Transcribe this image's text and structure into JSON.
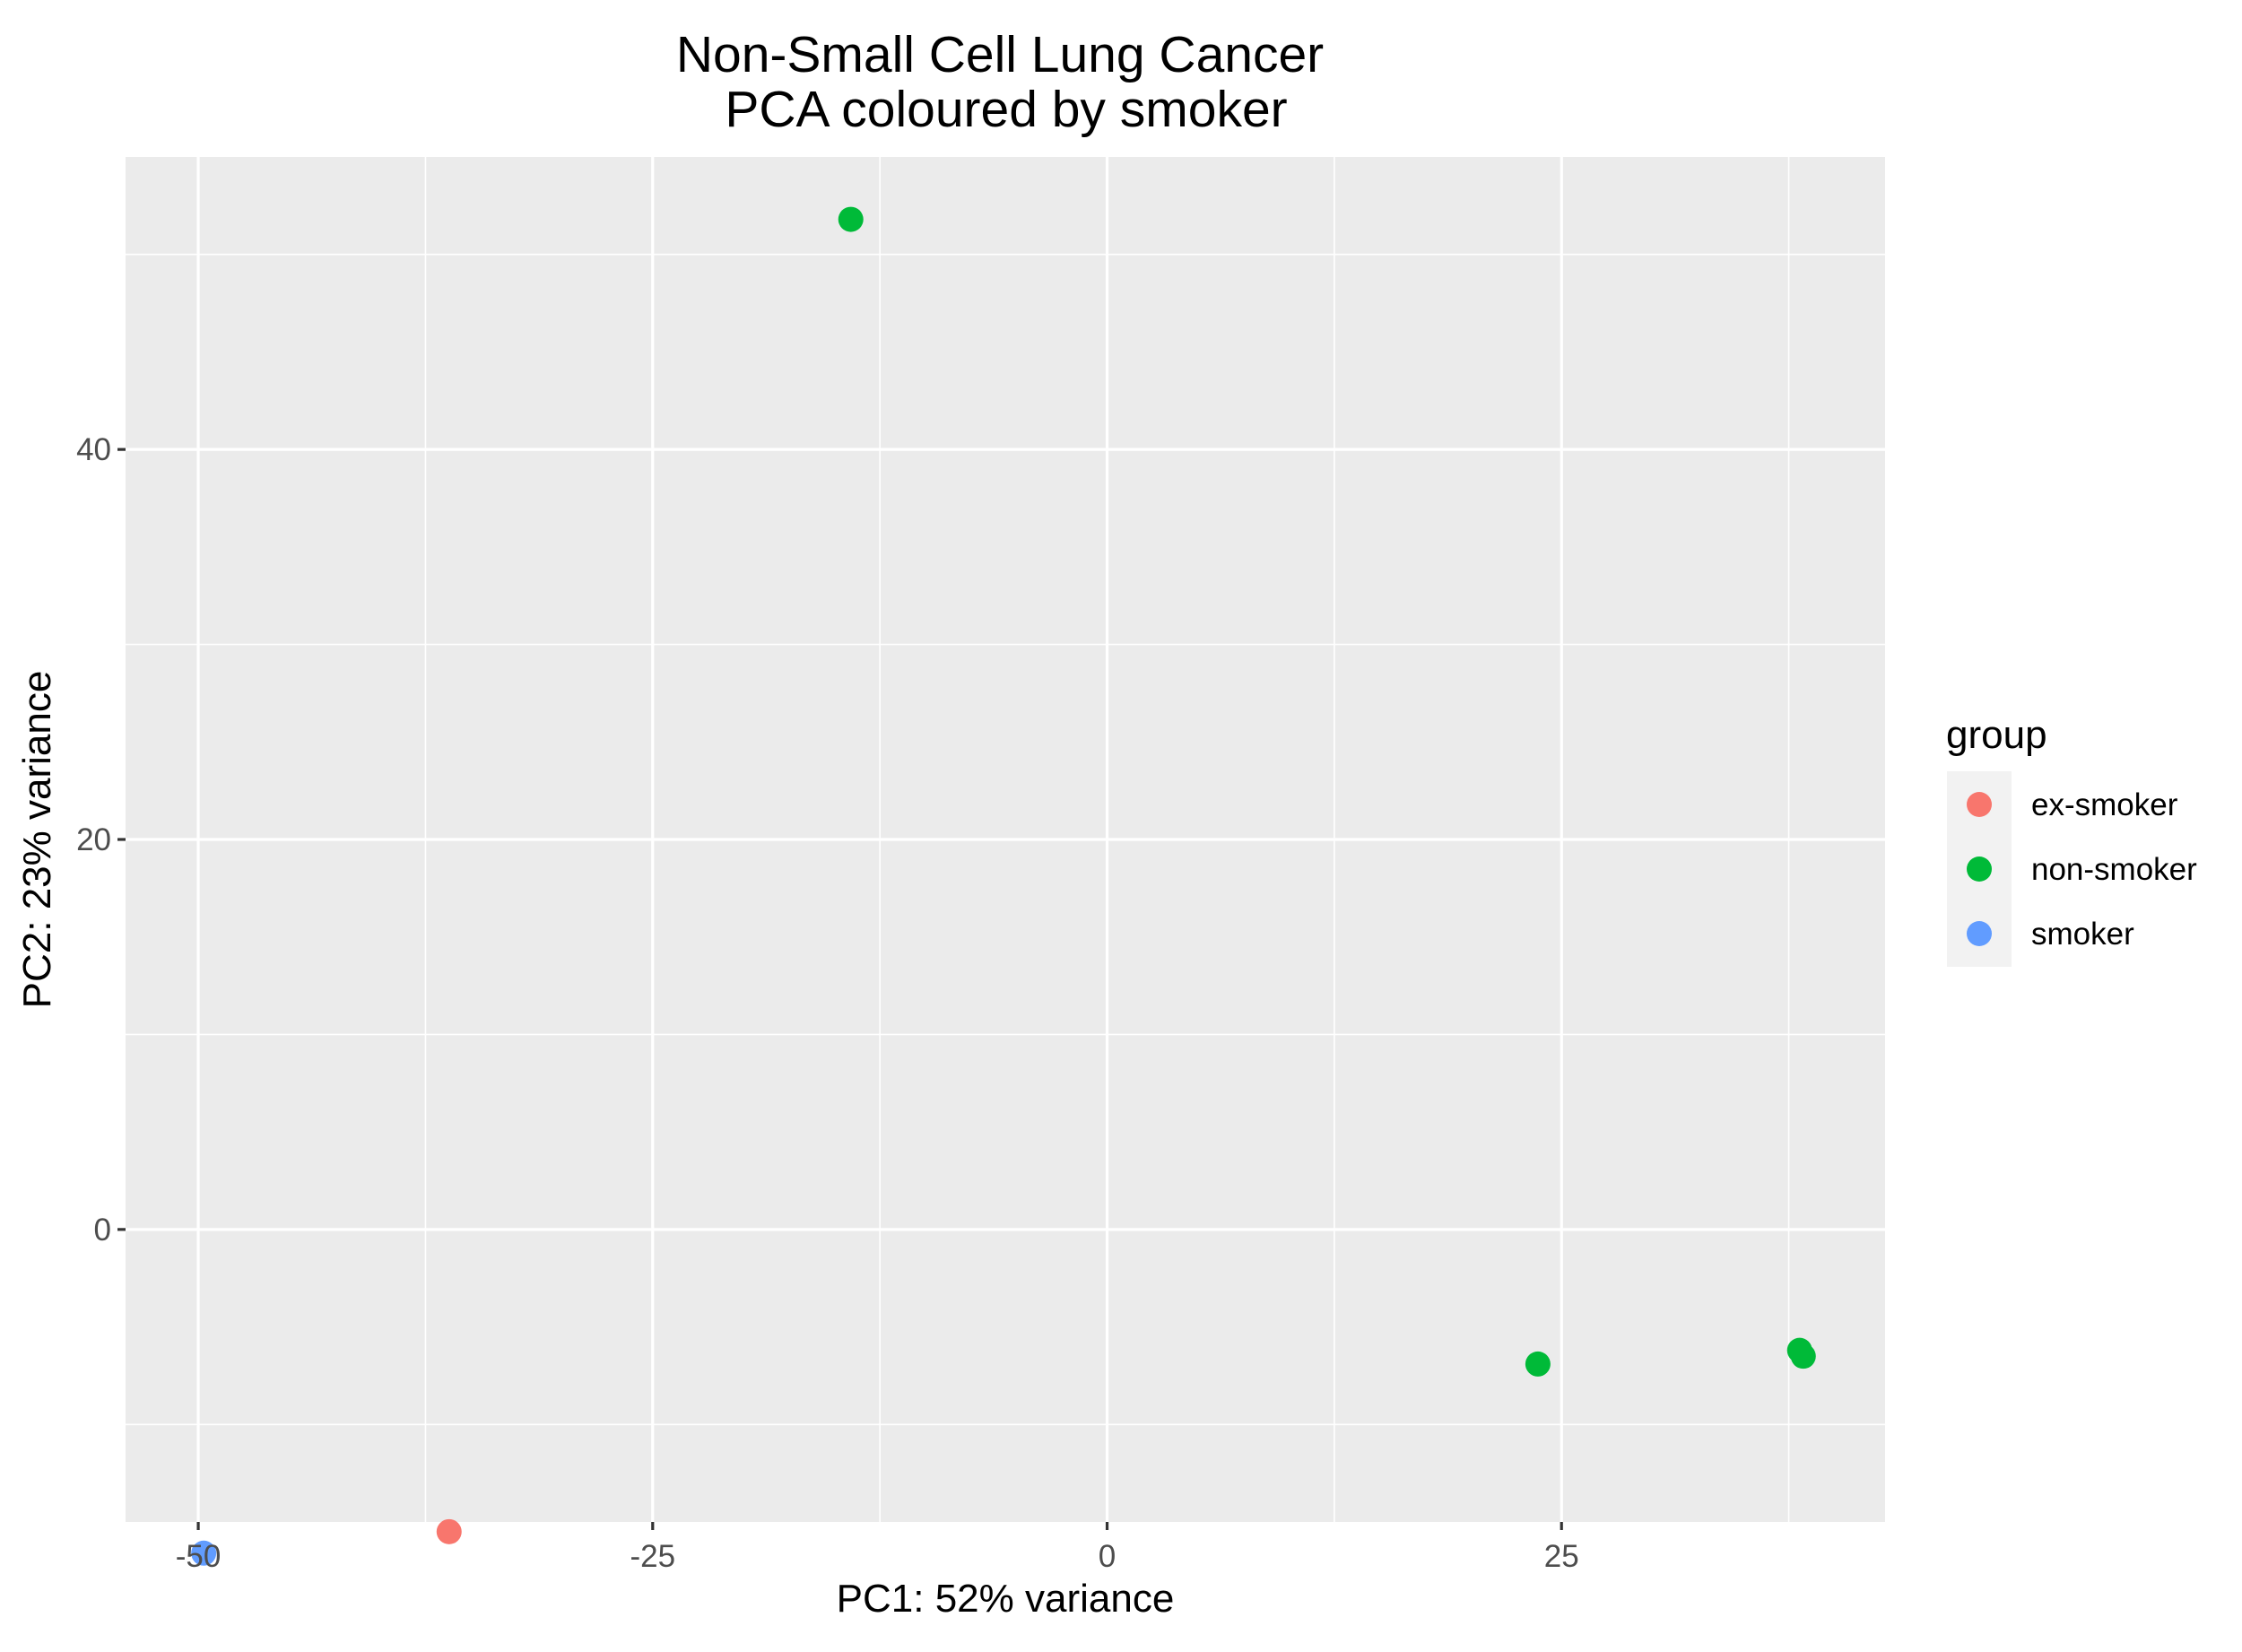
{
  "chart_data": {
    "type": "scatter",
    "title": "Non-Small Cell Lung Cancer",
    "subtitle": "PCA coloured by smoker",
    "xlabel": "PC1: 52% variance",
    "ylabel": "PC2: 23% variance",
    "xlim": [
      -54,
      42.8
    ],
    "ylim": [
      -15,
      55
    ],
    "x_ticks": [
      -50,
      -25,
      0,
      25
    ],
    "y_ticks": [
      0,
      20,
      40
    ],
    "x_minor": [
      -37.5,
      -12.5,
      12.5,
      37.5
    ],
    "y_minor": [
      -10,
      10,
      30,
      50
    ],
    "grid": true,
    "panel_background": "#ebebeb",
    "legend": {
      "title": "group",
      "position": "right",
      "entries": [
        {
          "label": "ex-smoker",
          "color": "#F8766D"
        },
        {
          "label": "non-smoker",
          "color": "#00BA38"
        },
        {
          "label": "smoker",
          "color": "#619CFF"
        }
      ]
    },
    "series": [
      {
        "name": "ex-smoker",
        "color": "#F8766D",
        "points": [
          {
            "x": -36.2,
            "y": -15.5
          }
        ]
      },
      {
        "name": "non-smoker",
        "color": "#00BA38",
        "points": [
          {
            "x": -14.1,
            "y": 51.8
          },
          {
            "x": 23.7,
            "y": -6.9
          },
          {
            "x": 38.1,
            "y": -6.2
          },
          {
            "x": 38.3,
            "y": -6.5
          }
        ]
      },
      {
        "name": "smoker",
        "color": "#619CFF",
        "points": [
          {
            "x": -49.7,
            "y": -16.6
          }
        ]
      }
    ]
  }
}
